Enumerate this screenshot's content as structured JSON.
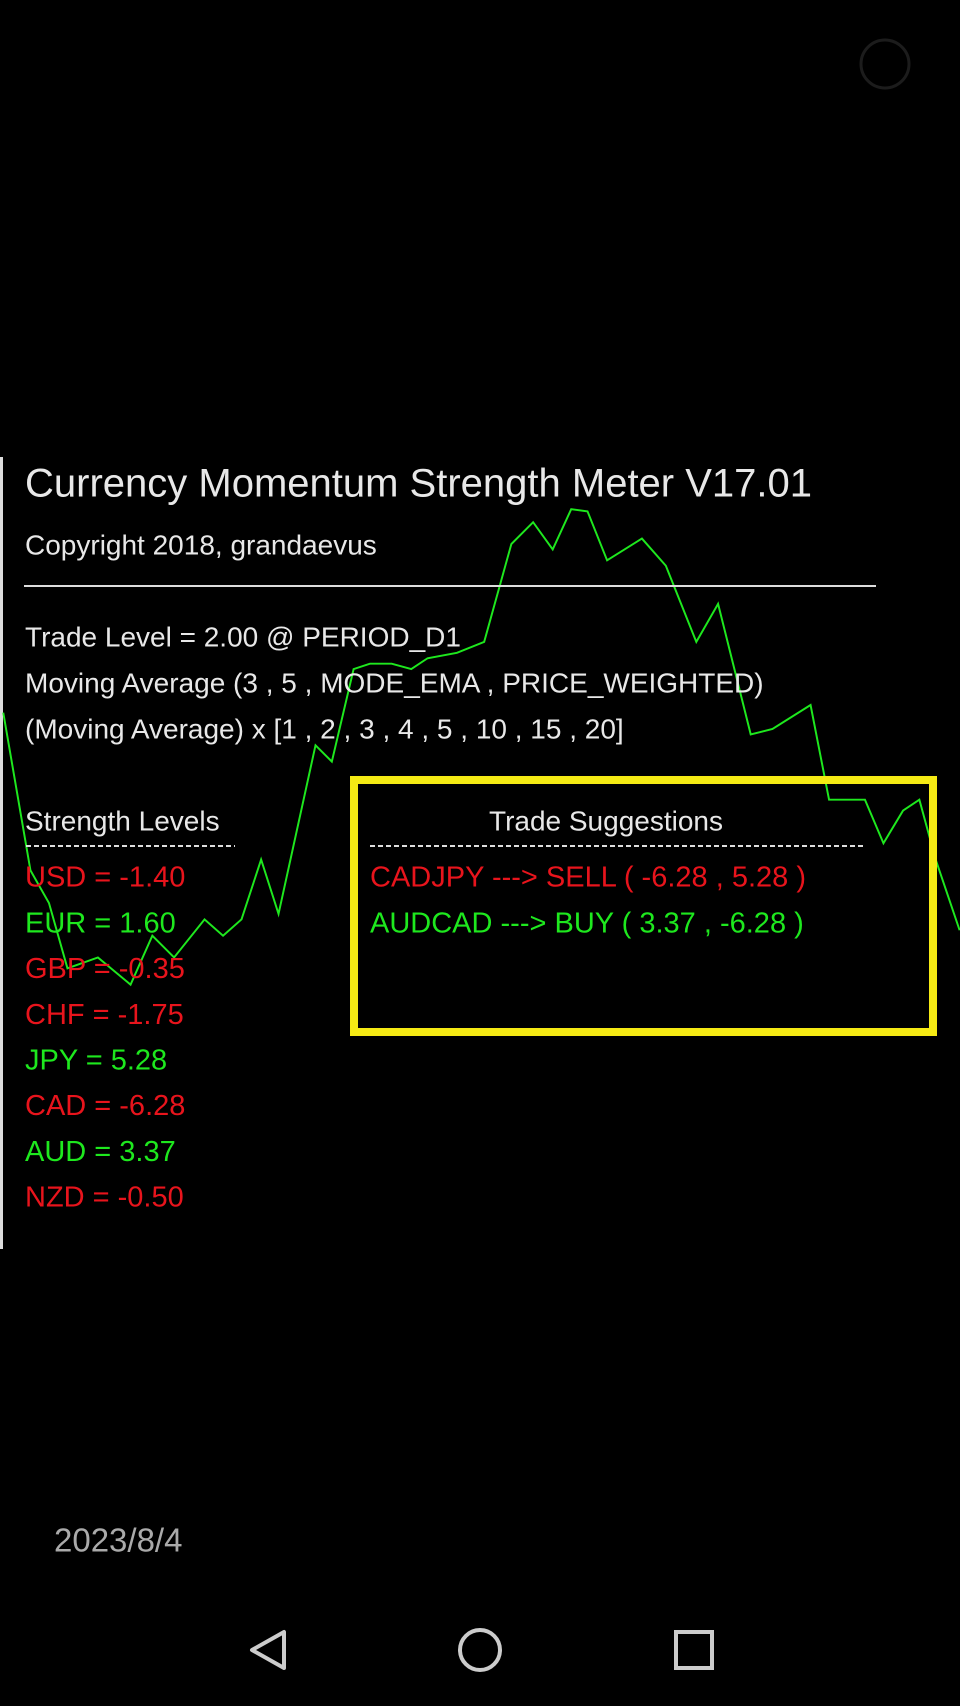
{
  "indicator": {
    "title": "Currency Momentum Strength Meter V17.01",
    "copyright": "Copyright 2018, grandaevus",
    "settings": [
      "Trade Level = 2.00 @ PERIOD_D1",
      "Moving Average (3 , 5 , MODE_EMA , PRICE_WEIGHTED)",
      "(Moving Average) x [1 , 2 , 3 , 4 , 5 , 10 , 15 , 20]"
    ],
    "strength": {
      "heading": "Strength Levels",
      "items": [
        {
          "text": "USD = -1.40",
          "color": "#e8141c"
        },
        {
          "text": "EUR = 1.60",
          "color": "#1ee81e"
        },
        {
          "text": "GBP = -0.35",
          "color": "#e8141c"
        },
        {
          "text": "CHF = -1.75",
          "color": "#e8141c"
        },
        {
          "text": "JPY = 5.28",
          "color": "#1ee81e"
        },
        {
          "text": "CAD = -6.28",
          "color": "#e8141c"
        },
        {
          "text": "AUD = 3.37",
          "color": "#1ee81e"
        },
        {
          "text": "NZD = -0.50",
          "color": "#e8141c"
        }
      ]
    },
    "suggestions": {
      "heading": "Trade Suggestions",
      "items": [
        {
          "text": "CADJPY ---> SELL ( -6.28 , 5.28 )",
          "color": "#e8141c"
        },
        {
          "text": "AUDCAD ---> BUY ( 3.37 , -6.28 )",
          "color": "#1ee81e"
        }
      ]
    }
  },
  "viewer": {
    "date": "2023/8/4"
  }
}
